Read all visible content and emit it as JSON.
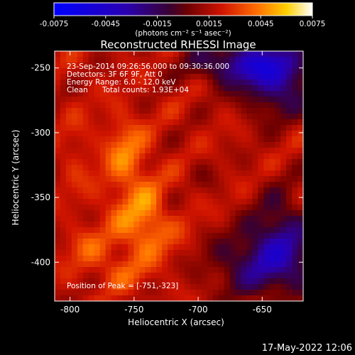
{
  "chart_data": {
    "type": "heatmap",
    "title": "Reconstructed RHESSI Image",
    "xlabel": "Heliocentric X (arcsec)",
    "ylabel": "Heliocentric Y (arcsec)",
    "xlim": [
      -812,
      -618
    ],
    "ylim": [
      -430,
      -237
    ],
    "x_ticks": [
      "-800",
      "-750",
      "-700",
      "-650"
    ],
    "y_ticks": [
      "-250",
      "-300",
      "-350",
      "-400"
    ],
    "x_tick_values": [
      -800,
      -750,
      -700,
      -650
    ],
    "y_tick_values": [
      -250,
      -300,
      -350,
      -400
    ],
    "colorbar": {
      "ticks": [
        "-0.0075",
        "-0.0045",
        "-0.0015",
        "0.0015",
        "0.0045",
        "0.0075"
      ],
      "tick_values": [
        -0.0075,
        -0.0045,
        -0.0015,
        0.0015,
        0.0045,
        0.0075
      ],
      "range": [
        -0.0075,
        0.0075
      ],
      "unit_label": "(photons cm⁻² s⁻¹ asec⁻²)",
      "colormap": "blue-purple-red-yellow-white"
    },
    "annotations": {
      "time": "23-Sep-2014 09:26:56.000 to 09:30:36.000",
      "detectors": "Detectors: 3F 6F 9F, Att 0",
      "energy": "Energy Range: 6.0 - 12.0 keV",
      "clean": "Clean",
      "counts": "Total counts: 1.93E+04",
      "peak": "Position of Peak = [-751,-323]"
    },
    "peak_position": [
      -751,
      -323
    ]
  },
  "footer": {
    "date": "17-May-2022 12:06"
  }
}
